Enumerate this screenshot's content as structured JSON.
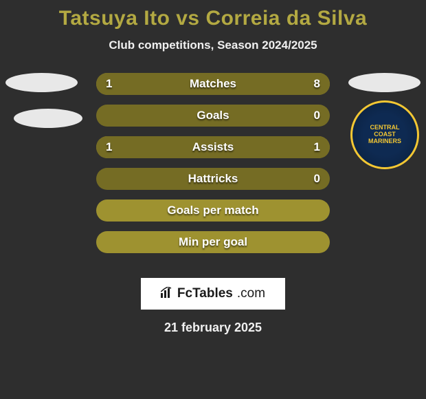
{
  "title": "Tatsuya Ito vs Correia da Silva",
  "subtitle": "Club competitions, Season 2024/2025",
  "colors": {
    "accent_title": "#b3a942",
    "text_light": "#f0f0f0",
    "bar_base": "#9e9230",
    "bar_fill": "#756c24",
    "background": "#2e2e2e",
    "white": "#ffffff",
    "black": "#1a1a1a",
    "badge_bg": "#0e2a52",
    "badge_ring": "#f3c733"
  },
  "bars_style": {
    "height": 32,
    "radius": 16,
    "gap": 14,
    "label_fontsize": 17,
    "value_fontsize": 17
  },
  "bars": [
    {
      "label": "Matches",
      "left": "1",
      "right": "8",
      "left_pct": 11,
      "right_pct": 89
    },
    {
      "label": "Goals",
      "left": "",
      "right": "0",
      "left_pct": 0,
      "right_pct": 0,
      "full_fill": true
    },
    {
      "label": "Assists",
      "left": "1",
      "right": "1",
      "left_pct": 50,
      "right_pct": 50
    },
    {
      "label": "Hattricks",
      "left": "",
      "right": "0",
      "left_pct": 0,
      "right_pct": 0,
      "full_fill": true
    },
    {
      "label": "Goals per match",
      "left": "",
      "right": "",
      "left_pct": 0,
      "right_pct": 0
    },
    {
      "label": "Min per goal",
      "left": "",
      "right": "",
      "left_pct": 0,
      "right_pct": 0
    }
  ],
  "badge_text": "CENTRAL COAST MARINERS",
  "footer": {
    "brand_main": "FcTables",
    "brand_tld": ".com"
  },
  "date": "21 february 2025"
}
